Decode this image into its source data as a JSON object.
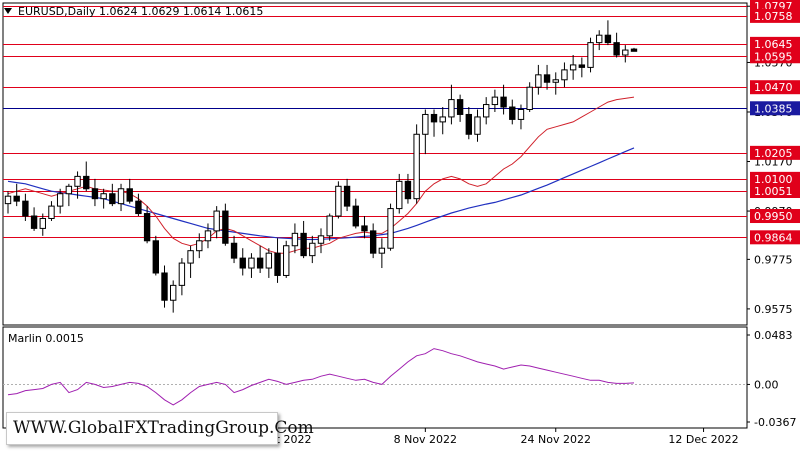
{
  "header": {
    "symbol_line": "EURUSD,Daily  1.0624 1.0629 1.0614 1.0615"
  },
  "indicator": {
    "label": "Marlin 0.0015"
  },
  "watermark": {
    "text": "WWW.GlobalFXTradingGroup.Com"
  },
  "colors": {
    "level_line": "#e0001a",
    "level_label_bg": "#e0001a",
    "support_line": "#00008b",
    "support_label_bg": "#1a1aa0",
    "ma_fast": "#d0202a",
    "ma_slow": "#2030c0",
    "oscillator": "#a020b0",
    "bull_candle": "#ffffff",
    "bear_candle": "#000000"
  },
  "chart_data": [
    {
      "type": "candlestick",
      "title": "EURUSD,Daily",
      "ylim": [
        0.951,
        1.081
      ],
      "y_ticks": [
        "0.9575",
        "0.9775",
        "0.9970",
        "1.0170",
        "1.0370",
        "1.0570",
        "1.0797"
      ],
      "x_ticks": [
        "21 Oct 2022",
        "8 Nov 2022",
        "24 Nov 2022",
        "12 Dec 2022"
      ],
      "x_tick_positions": [
        31,
        48,
        63,
        80
      ],
      "levels": [
        {
          "value": 1.0797,
          "label": "1.0797",
          "style": "red"
        },
        {
          "value": 1.0758,
          "label": "1.0758",
          "style": "red"
        },
        {
          "value": 1.0645,
          "label": "1.0645",
          "style": "red"
        },
        {
          "value": 1.0595,
          "label": "1.0595",
          "style": "red"
        },
        {
          "value": 1.047,
          "label": "1.0470",
          "style": "red"
        },
        {
          "value": 1.0385,
          "label": "1.0385",
          "style": "blue"
        },
        {
          "value": 1.0205,
          "label": "1.0205",
          "style": "red"
        },
        {
          "value": 1.01,
          "label": "1.0100",
          "style": "red"
        },
        {
          "value": 1.0051,
          "label": "1.0051",
          "style": "red"
        },
        {
          "value": 0.995,
          "label": "0.9950",
          "style": "red"
        },
        {
          "value": 0.9864,
          "label": "0.9864",
          "style": "red"
        }
      ],
      "ohlc": [
        [
          1.0,
          1.005,
          0.996,
          1.003
        ],
        [
          1.003,
          1.008,
          0.999,
          1.001
        ],
        [
          1.001,
          1.004,
          0.993,
          0.995
        ],
        [
          0.995,
          0.9985,
          0.989,
          0.99
        ],
        [
          0.99,
          0.996,
          0.987,
          0.994
        ],
        [
          0.994,
          1.001,
          0.993,
          0.999
        ],
        [
          0.999,
          1.006,
          0.996,
          1.004
        ],
        [
          1.004,
          1.008,
          0.999,
          1.007
        ],
        [
          1.007,
          1.013,
          1.002,
          1.011
        ],
        [
          1.011,
          1.017,
          1.005,
          1.006
        ],
        [
          1.006,
          1.01,
          0.999,
          1.002
        ],
        [
          1.002,
          1.006,
          0.998,
          1.004
        ],
        [
          1.004,
          1.008,
          0.999,
          1.0
        ],
        [
          1.0,
          1.008,
          0.997,
          1.006
        ],
        [
          1.006,
          1.01,
          1.0,
          1.001
        ],
        [
          1.001,
          1.004,
          0.995,
          0.996
        ],
        [
          0.996,
          0.999,
          0.984,
          0.985
        ],
        [
          0.985,
          0.987,
          0.971,
          0.972
        ],
        [
          0.972,
          0.975,
          0.958,
          0.961
        ],
        [
          0.961,
          0.969,
          0.956,
          0.967
        ],
        [
          0.967,
          0.978,
          0.963,
          0.976
        ],
        [
          0.976,
          0.983,
          0.97,
          0.981
        ],
        [
          0.981,
          0.988,
          0.978,
          0.985
        ],
        [
          0.985,
          0.992,
          0.982,
          0.989
        ],
        [
          0.989,
          0.999,
          0.986,
          0.997
        ],
        [
          0.997,
          1.0,
          0.983,
          0.984
        ],
        [
          0.984,
          0.987,
          0.976,
          0.978
        ],
        [
          0.978,
          0.982,
          0.971,
          0.974
        ],
        [
          0.974,
          0.98,
          0.97,
          0.978
        ],
        [
          0.978,
          0.983,
          0.972,
          0.974
        ],
        [
          0.974,
          0.982,
          0.97,
          0.98
        ],
        [
          0.98,
          0.986,
          0.968,
          0.971
        ],
        [
          0.971,
          0.985,
          0.97,
          0.983
        ],
        [
          0.983,
          0.992,
          0.98,
          0.988
        ],
        [
          0.988,
          0.993,
          0.978,
          0.979
        ],
        [
          0.979,
          0.987,
          0.976,
          0.984
        ],
        [
          0.984,
          0.99,
          0.98,
          0.987
        ],
        [
          0.987,
          0.996,
          0.985,
          0.995
        ],
        [
          0.995,
          1.009,
          0.994,
          1.007
        ],
        [
          1.007,
          1.01,
          0.997,
          0.999
        ],
        [
          0.999,
          1.002,
          0.99,
          0.991
        ],
        [
          0.991,
          0.995,
          0.986,
          0.989
        ],
        [
          0.989,
          0.992,
          0.978,
          0.98
        ],
        [
          0.98,
          0.986,
          0.974,
          0.982
        ],
        [
          0.982,
          1.0,
          0.981,
          0.998
        ],
        [
          0.998,
          1.012,
          0.996,
          1.009
        ],
        [
          1.009,
          1.012,
          1.0,
          1.002
        ],
        [
          1.002,
          1.032,
          1.0,
          1.028
        ],
        [
          1.028,
          1.038,
          1.02,
          1.036
        ],
        [
          1.036,
          1.038,
          1.027,
          1.033
        ],
        [
          1.033,
          1.039,
          1.028,
          1.035
        ],
        [
          1.035,
          1.048,
          1.032,
          1.042
        ],
        [
          1.042,
          1.044,
          1.033,
          1.036
        ],
        [
          1.036,
          1.039,
          1.026,
          1.028
        ],
        [
          1.028,
          1.038,
          1.025,
          1.035
        ],
        [
          1.035,
          1.043,
          1.032,
          1.04
        ],
        [
          1.04,
          1.046,
          1.037,
          1.043
        ],
        [
          1.043,
          1.048,
          1.036,
          1.039
        ],
        [
          1.039,
          1.042,
          1.032,
          1.034
        ],
        [
          1.034,
          1.04,
          1.03,
          1.038
        ],
        [
          1.038,
          1.049,
          1.037,
          1.047
        ],
        [
          1.047,
          1.056,
          1.044,
          1.052
        ],
        [
          1.052,
          1.056,
          1.046,
          1.049
        ],
        [
          1.049,
          1.053,
          1.044,
          1.05
        ],
        [
          1.05,
          1.057,
          1.047,
          1.054
        ],
        [
          1.054,
          1.06,
          1.05,
          1.056
        ],
        [
          1.056,
          1.059,
          1.051,
          1.055
        ],
        [
          1.055,
          1.067,
          1.053,
          1.065
        ],
        [
          1.065,
          1.07,
          1.062,
          1.068
        ],
        [
          1.068,
          1.074,
          1.064,
          1.065
        ],
        [
          1.065,
          1.069,
          1.059,
          1.06
        ],
        [
          1.06,
          1.064,
          1.057,
          1.062
        ],
        [
          1.0624,
          1.0629,
          1.0614,
          1.0615
        ]
      ],
      "ma_fast": [
        1.004,
        1.005,
        1.006,
        1.005,
        1.004,
        1.003,
        1.004,
        1.005,
        1.006,
        1.007,
        1.006,
        1.0055,
        1.005,
        1.005,
        1.004,
        1.002,
        0.999,
        0.995,
        0.99,
        0.986,
        0.984,
        0.983,
        0.984,
        0.986,
        0.989,
        0.99,
        0.989,
        0.987,
        0.985,
        0.983,
        0.981,
        0.98,
        0.98,
        0.981,
        0.982,
        0.982,
        0.983,
        0.984,
        0.986,
        0.987,
        0.988,
        0.9885,
        0.988,
        0.988,
        0.99,
        0.993,
        0.996,
        1.0,
        1.005,
        1.008,
        1.01,
        1.011,
        1.01,
        1.008,
        1.007,
        1.008,
        1.011,
        1.014,
        1.016,
        1.019,
        1.023,
        1.027,
        1.03,
        1.031,
        1.032,
        1.033,
        1.035,
        1.037,
        1.039,
        1.041,
        1.042,
        1.0425,
        1.043
      ],
      "ma_slow": [
        1.009,
        1.0085,
        1.008,
        1.007,
        1.006,
        1.005,
        1.0045,
        1.004,
        1.0035,
        1.003,
        1.0025,
        1.002,
        1.001,
        1.0,
        0.999,
        0.998,
        0.997,
        0.996,
        0.995,
        0.994,
        0.993,
        0.992,
        0.991,
        0.99,
        0.9895,
        0.989,
        0.9885,
        0.988,
        0.9875,
        0.987,
        0.9866,
        0.9862,
        0.986,
        0.9858,
        0.9856,
        0.9855,
        0.9856,
        0.9858,
        0.986,
        0.9862,
        0.9865,
        0.9868,
        0.987,
        0.9875,
        0.988,
        0.989,
        0.99,
        0.9912,
        0.9925,
        0.9938,
        0.995,
        0.9962,
        0.9972,
        0.9982,
        0.999,
        0.9998,
        1.0005,
        1.0015,
        1.0025,
        1.0035,
        1.0048,
        1.0062,
        1.0075,
        1.009,
        1.0105,
        1.012,
        1.0135,
        1.015,
        1.0165,
        1.018,
        1.0195,
        1.021,
        1.0225
      ]
    },
    {
      "type": "line",
      "title": "Marlin 0.0015",
      "ylim": [
        -0.0367,
        0.0483
      ],
      "y_ticks": [
        "0.0483",
        "0.00",
        "-0.0367"
      ],
      "series": [
        {
          "values": [
            -0.01,
            -0.009,
            -0.006,
            -0.005,
            -0.004,
            0.0,
            0.002,
            -0.008,
            -0.005,
            0.002,
            0.0,
            -0.003,
            -0.002,
            0.0,
            0.002,
            0.001,
            -0.002,
            -0.008,
            -0.015,
            -0.02,
            -0.015,
            -0.008,
            -0.002,
            0.0,
            0.002,
            0.0,
            -0.008,
            -0.005,
            -0.001,
            0.002,
            0.005,
            0.003,
            0.0,
            0.002,
            0.004,
            0.005,
            0.008,
            0.01,
            0.008,
            0.006,
            0.004,
            0.005,
            0.002,
            0.0,
            0.008,
            0.015,
            0.022,
            0.028,
            0.03,
            0.035,
            0.033,
            0.03,
            0.028,
            0.025,
            0.022,
            0.02,
            0.018,
            0.015,
            0.017,
            0.019,
            0.018,
            0.016,
            0.014,
            0.012,
            0.01,
            0.008,
            0.006,
            0.004,
            0.004,
            0.002,
            0.001,
            0.001,
            0.0015
          ]
        }
      ]
    }
  ]
}
